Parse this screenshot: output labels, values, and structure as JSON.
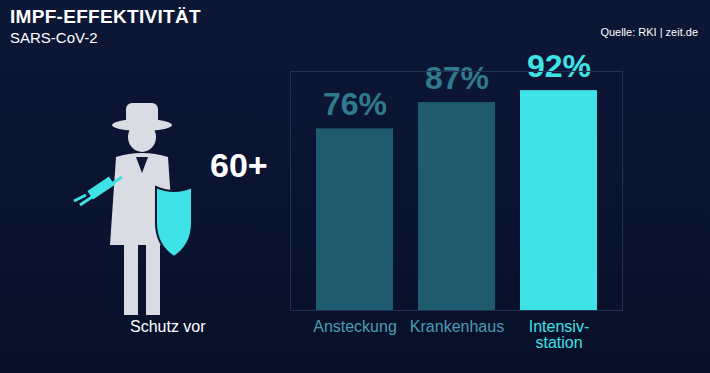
{
  "chart_data": {
    "type": "bar",
    "title": "IMPF-EFFEKTIVITÄT",
    "subtitle": "SARS-CoV-2",
    "source": "Quelle: RKI | zeit.de",
    "annotations": [
      "60+"
    ],
    "xlabel": "Schutz vor",
    "categories": [
      "Ansteckung",
      "Krankenhaus",
      "Intensiv-\nstation"
    ],
    "values": [
      76,
      87,
      92
    ],
    "value_labels": [
      "76%",
      "87%",
      "92%"
    ],
    "data_labels": true,
    "colors": [
      "#1e5b6e",
      "#1e5b6e",
      "#3fe2e6"
    ],
    "ylim": [
      0,
      100
    ],
    "yticks": [],
    "tick_labels": "x",
    "grid": false
  }
}
